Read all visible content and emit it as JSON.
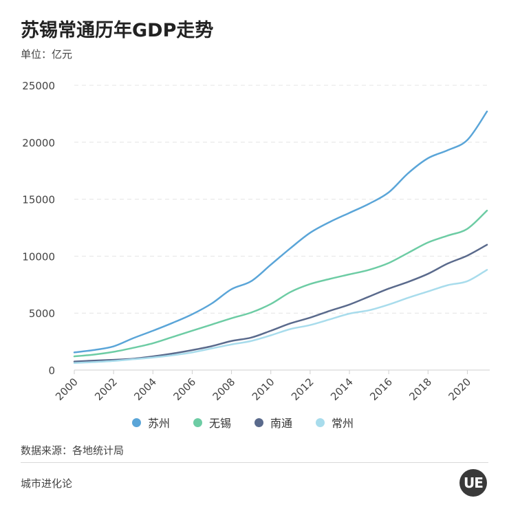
{
  "header": {
    "title": "苏锡常通历年GDP走势",
    "unit": "单位：亿元"
  },
  "footer": {
    "source": "数据来源：各地统计局",
    "brand": "城市进化论",
    "logo_text": "UE"
  },
  "chart_data": {
    "type": "line",
    "title": "苏锡常通历年GDP走势",
    "ylabel": "单位：亿元",
    "ylim": [
      0,
      25000
    ],
    "yticks": [
      0,
      5000,
      10000,
      15000,
      20000,
      25000
    ],
    "xlim": [
      2000,
      2021
    ],
    "xticks": [
      2000,
      2002,
      2004,
      2006,
      2008,
      2010,
      2012,
      2014,
      2016,
      2018,
      2020
    ],
    "grid": true,
    "legend_position": "bottom",
    "x": [
      2000,
      2001,
      2002,
      2003,
      2004,
      2005,
      2006,
      2007,
      2008,
      2009,
      2010,
      2011,
      2012,
      2013,
      2014,
      2015,
      2016,
      2017,
      2018,
      2019,
      2020,
      2021
    ],
    "series": [
      {
        "name": "苏州",
        "color": "#5aa5d8",
        "values": [
          1550,
          1760,
          2080,
          2800,
          3450,
          4140,
          4900,
          5850,
          7100,
          7800,
          9250,
          10700,
          12050,
          13000,
          13800,
          14600,
          15600,
          17300,
          18600,
          19300,
          20200,
          22700
        ]
      },
      {
        "name": "无锡",
        "color": "#6dcca4",
        "values": [
          1200,
          1360,
          1600,
          1950,
          2350,
          2900,
          3450,
          4000,
          4550,
          5050,
          5800,
          6850,
          7550,
          8000,
          8400,
          8800,
          9400,
          10300,
          11200,
          11800,
          12400,
          14000
        ]
      },
      {
        "name": "南通",
        "color": "#5a6a8c",
        "values": [
          750,
          830,
          900,
          1000,
          1200,
          1450,
          1750,
          2100,
          2550,
          2850,
          3450,
          4100,
          4600,
          5200,
          5750,
          6450,
          7150,
          7750,
          8450,
          9350,
          10050,
          11000
        ]
      },
      {
        "name": "常州",
        "color": "#a8dcec",
        "values": [
          620,
          700,
          800,
          950,
          1100,
          1300,
          1550,
          1900,
          2250,
          2550,
          3050,
          3600,
          3950,
          4450,
          4950,
          5250,
          5750,
          6350,
          6900,
          7450,
          7800,
          8800
        ]
      }
    ]
  }
}
